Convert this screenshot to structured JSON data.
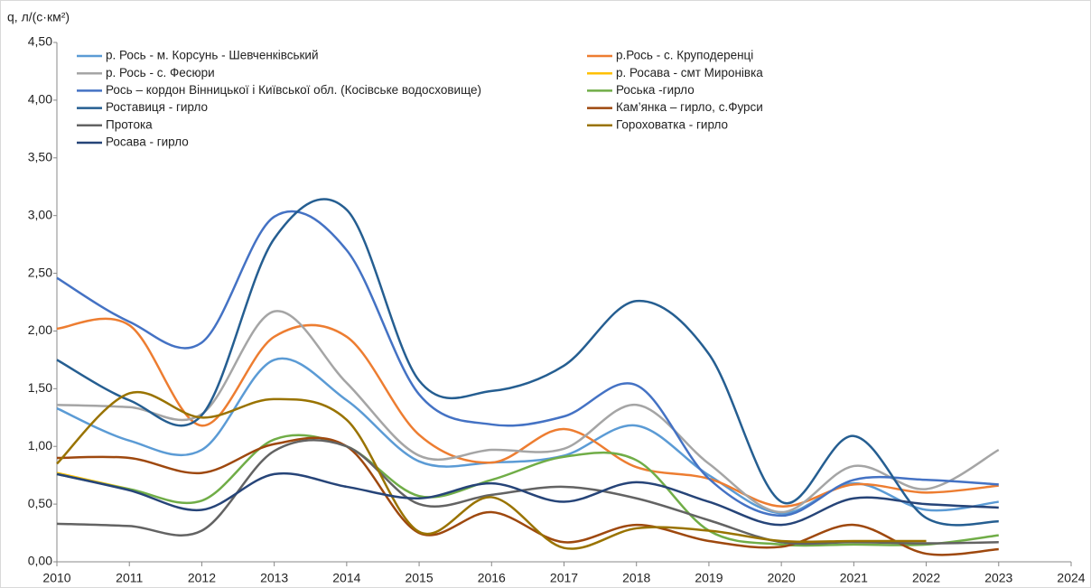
{
  "chart_data": {
    "type": "line",
    "y_label": "q,  л/(с·км²)",
    "x": [
      2010,
      2011,
      2012,
      2013,
      2014,
      2015,
      2016,
      2017,
      2018,
      2019,
      2020,
      2021,
      2022,
      2023
    ],
    "xlim": [
      2010,
      2024
    ],
    "xticks": [
      2010,
      2011,
      2012,
      2013,
      2014,
      2015,
      2016,
      2017,
      2018,
      2019,
      2020,
      2021,
      2022,
      2023,
      2024
    ],
    "ylim": [
      0,
      4.5
    ],
    "yticks": [
      {
        "value": 0,
        "label": "0,00"
      },
      {
        "value": 0.5,
        "label": "0,50"
      },
      {
        "value": 1,
        "label": "1,00"
      },
      {
        "value": 1.5,
        "label": "1,50"
      },
      {
        "value": 2,
        "label": "2,00"
      },
      {
        "value": 2.5,
        "label": "2,50"
      },
      {
        "value": 3,
        "label": "3,00"
      },
      {
        "value": 3.5,
        "label": "3,50"
      },
      {
        "value": 4,
        "label": "4,00"
      },
      {
        "value": 4.5,
        "label": "4,50"
      }
    ],
    "grid": false,
    "smooth": true,
    "series": [
      {
        "name": "р. Рось - м. Корсунь - Шевченківський",
        "color": "#5b9bd5",
        "values": [
          1.33,
          1.05,
          0.97,
          1.75,
          1.4,
          0.87,
          0.86,
          0.92,
          1.18,
          0.75,
          0.42,
          0.68,
          0.45,
          0.52
        ]
      },
      {
        "name": "р.Рось - с. Круподеренці",
        "color": "#ed7d31",
        "values": [
          2.02,
          2.05,
          1.18,
          1.95,
          1.95,
          1.1,
          0.86,
          1.15,
          0.82,
          0.72,
          0.48,
          0.67,
          0.6,
          0.66
        ]
      },
      {
        "name": "р. Рось  - с. Фесюри",
        "color": "#a5a5a5",
        "values": [
          1.36,
          1.34,
          1.28,
          2.17,
          1.55,
          0.92,
          0.97,
          0.98,
          1.36,
          0.85,
          0.43,
          0.83,
          0.63,
          0.97
        ]
      },
      {
        "name": "р. Росава - смт Миронівка",
        "color": "#ffc000",
        "values": [
          0.77,
          0.63,
          null,
          null,
          null,
          null,
          null,
          null,
          null,
          null,
          null,
          null,
          null,
          null
        ]
      },
      {
        "name": "Рось – кордон Вінницької і Київської обл. (Косівське водосховище)",
        "color": "#4472c4",
        "values": [
          2.46,
          2.08,
          1.9,
          2.99,
          2.7,
          1.45,
          1.19,
          1.26,
          1.53,
          0.72,
          0.4,
          0.71,
          0.71,
          0.67
        ]
      },
      {
        "name": "Роська -гирло",
        "color": "#70ad47",
        "values": [
          0.76,
          0.63,
          0.53,
          1.06,
          1.0,
          0.57,
          0.71,
          0.91,
          0.88,
          0.27,
          0.15,
          0.15,
          0.15,
          0.23
        ]
      },
      {
        "name": "Роставиця - гирло",
        "color": "#255e91",
        "values": [
          1.75,
          1.4,
          1.27,
          2.8,
          3.05,
          1.57,
          1.48,
          1.7,
          2.26,
          1.8,
          0.52,
          1.09,
          0.38,
          0.35
        ]
      },
      {
        "name": "Кам’янка – гирло, с.Фурси",
        "color": "#9e480e",
        "values": [
          0.9,
          0.9,
          0.77,
          1.02,
          1.0,
          0.25,
          0.43,
          0.17,
          0.32,
          0.18,
          0.13,
          0.32,
          0.07,
          0.11
        ]
      },
      {
        "name": "Протока",
        "color": "#636363",
        "values": [
          0.33,
          0.31,
          0.27,
          0.96,
          1.0,
          0.5,
          0.58,
          0.65,
          0.55,
          0.36,
          0.17,
          0.17,
          0.16,
          0.17
        ]
      },
      {
        "name": "Гороховатка - гирло",
        "color": "#997300",
        "values": [
          0.85,
          1.46,
          1.25,
          1.41,
          1.23,
          0.26,
          0.56,
          0.12,
          0.29,
          0.27,
          0.18,
          0.18,
          0.18,
          null
        ]
      },
      {
        "name": "Росава - гирло",
        "color": "#264478",
        "values": [
          0.76,
          0.62,
          0.45,
          0.76,
          0.65,
          0.55,
          0.68,
          0.52,
          0.69,
          0.52,
          0.32,
          0.55,
          0.5,
          0.47
        ]
      }
    ]
  }
}
